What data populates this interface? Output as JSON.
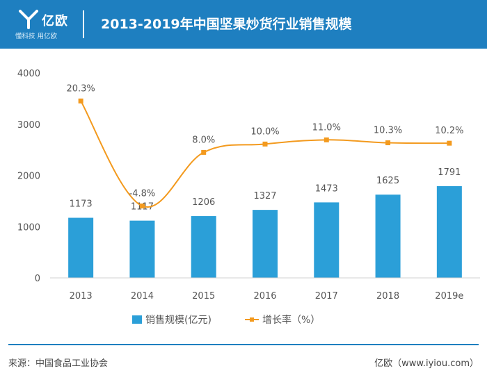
{
  "header": {
    "logo_name": "亿欧",
    "logo_tagline": "懂科技 用亿欧",
    "title": "2013-2019年中国坚果炒货行业销售规模"
  },
  "colors": {
    "brand": "#1e7fc0",
    "bar": "#2b9fd8",
    "line": "#f39a1e"
  },
  "chart_data": {
    "type": "bar",
    "categories": [
      "2013",
      "2014",
      "2015",
      "2016",
      "2017",
      "2018",
      "2019e"
    ],
    "series": [
      {
        "name": "销售规模(亿元)",
        "type": "bar",
        "values": [
          1173,
          1117,
          1206,
          1327,
          1473,
          1625,
          1791
        ],
        "labels": [
          "1173",
          "1117",
          "1206",
          "1327",
          "1473",
          "1625",
          "1791"
        ]
      },
      {
        "name": "增长率（%）",
        "type": "line",
        "values": [
          20.3,
          -4.8,
          8.0,
          10.0,
          11.0,
          10.3,
          10.2
        ],
        "labels": [
          "20.3%",
          "-4.8%",
          "8.0%",
          "10.0%",
          "11.0%",
          "10.3%",
          "10.2%"
        ]
      }
    ],
    "y_ticks": [
      "0",
      "1000",
      "2000",
      "3000",
      "4000"
    ],
    "ylim": [
      0,
      4000
    ],
    "line_ylim": [
      -22,
      27
    ],
    "legend": {
      "position": "bottom",
      "bar_label": "销售规模(亿元)",
      "line_label": "增长率（%）"
    }
  },
  "footer": {
    "source": "来源：中国食品工业协会",
    "credit": "亿欧（www.iyiou.com）"
  }
}
